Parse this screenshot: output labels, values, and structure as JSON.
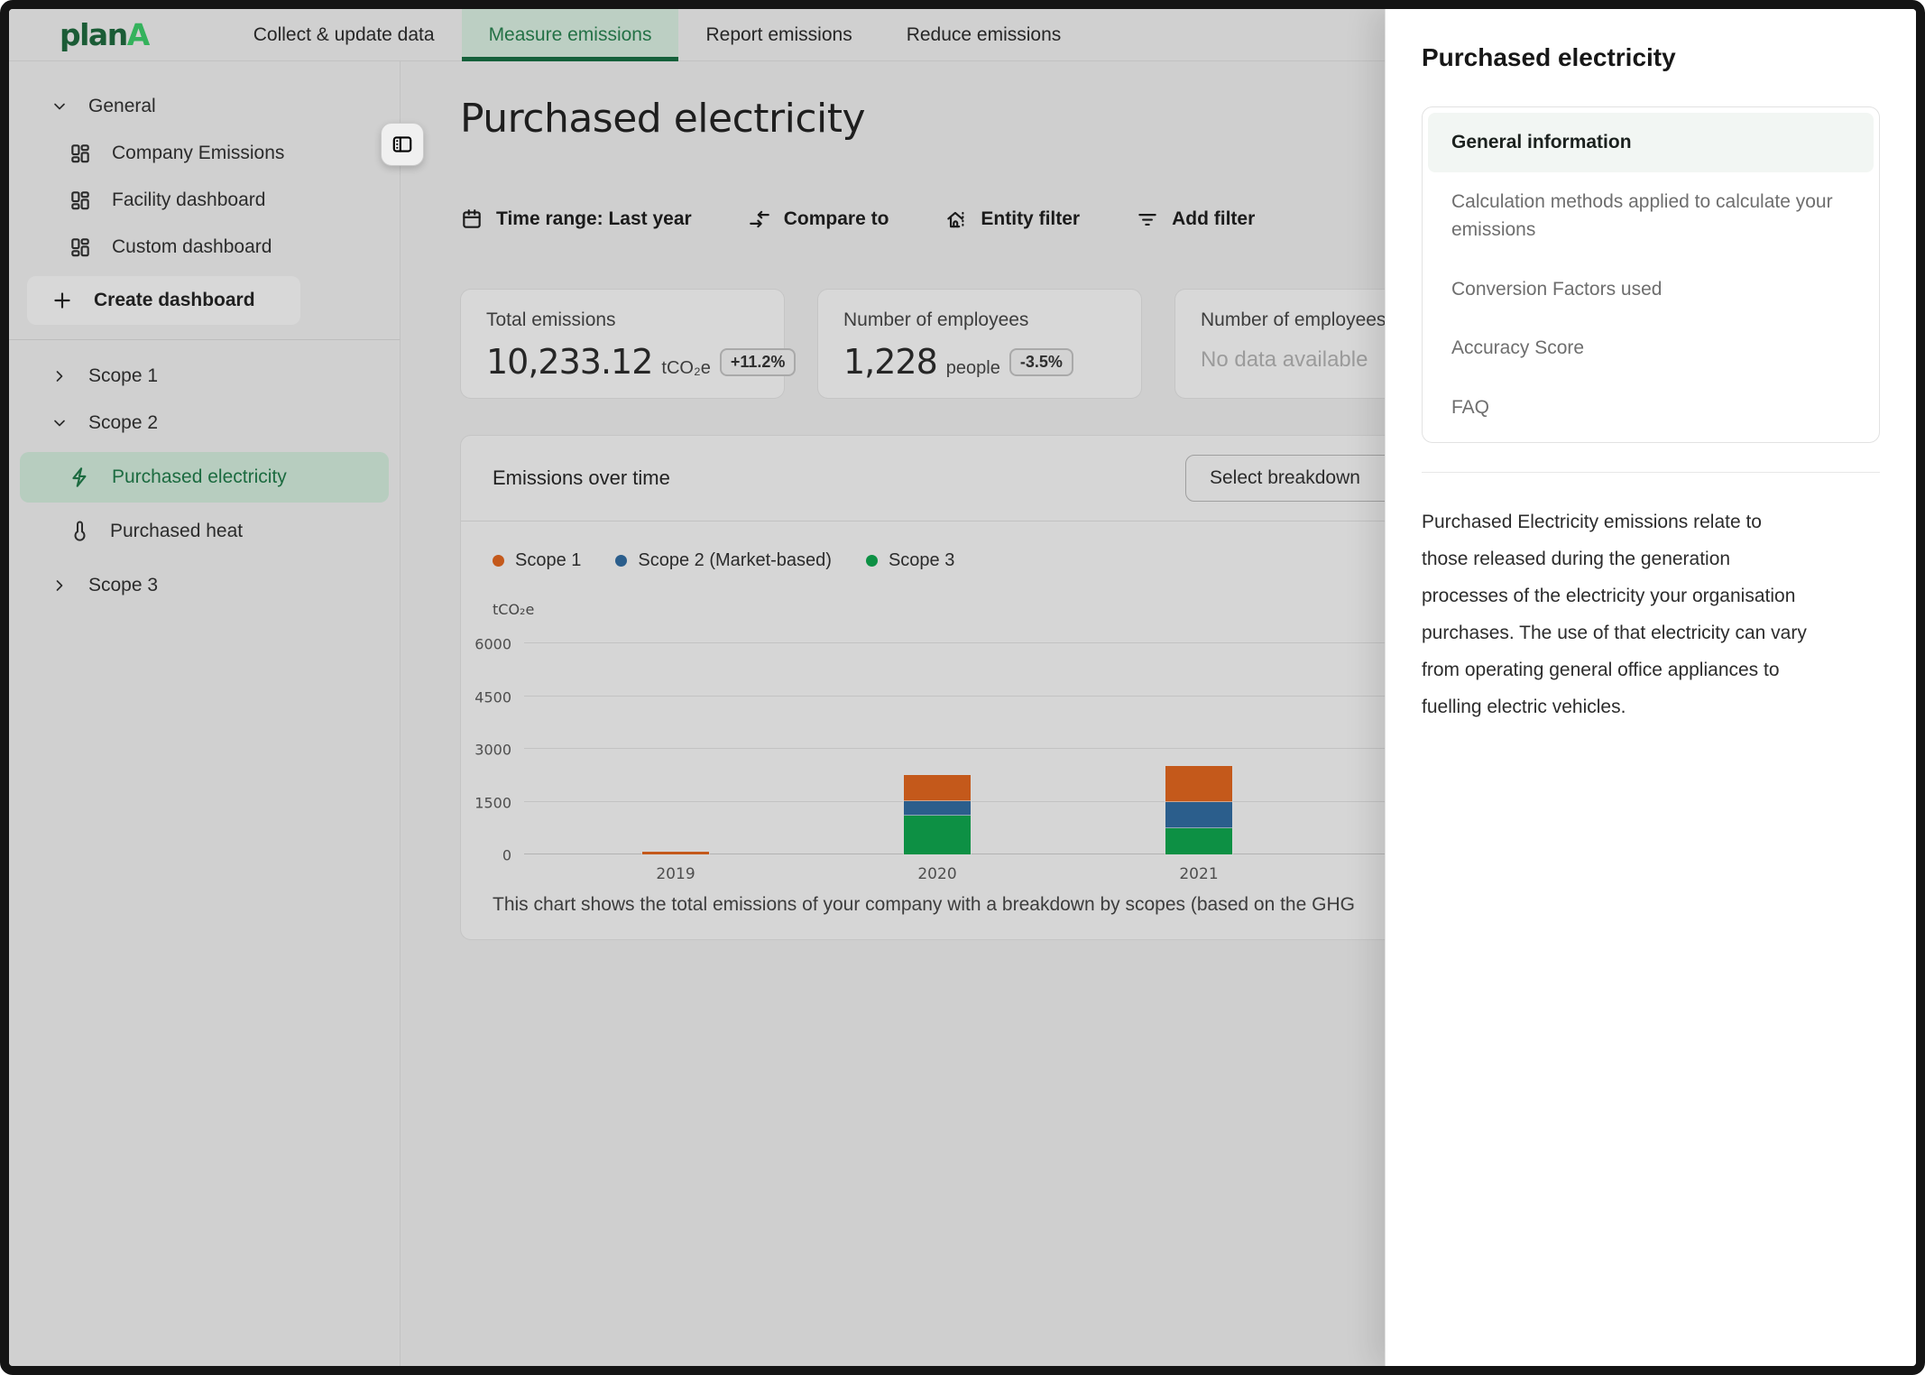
{
  "brand": {
    "plan": "plan",
    "a": "A"
  },
  "nav": {
    "tabs": [
      {
        "label": "Collect & update data",
        "active": false
      },
      {
        "label": "Measure emissions",
        "active": true
      },
      {
        "label": "Report emissions",
        "active": false
      },
      {
        "label": "Reduce emissions",
        "active": false
      }
    ]
  },
  "sidebar": {
    "general": "General",
    "company": "Company Emissions",
    "facility": "Facility dashboard",
    "custom": "Custom dashboard",
    "create": "Create dashboard",
    "scope1": "Scope 1",
    "scope2": "Scope 2",
    "purchased_electricity": "Purchased electricity",
    "purchased_heat": "Purchased heat",
    "scope3": "Scope 3"
  },
  "header": {
    "title": "Purchased electricity"
  },
  "filters": {
    "time_range": "Time range: Last year",
    "compare": "Compare to",
    "entity": "Entity filter",
    "add": "Add filter"
  },
  "stats": [
    {
      "label": "Total emissions",
      "value": "10,233.12",
      "unit": "tCO₂e",
      "badge": "+11.2%"
    },
    {
      "label": "Number of employees",
      "value": "1,228",
      "unit": "people",
      "badge": "-3.5%"
    },
    {
      "label": "Number of employees",
      "empty": "No data available"
    }
  ],
  "chart": {
    "title": "Emissions over time",
    "breakdown": "Select breakdown",
    "caption": "This chart shows the total emissions of your company with a breakdown by scopes (based on the GHG"
  },
  "chart_data": {
    "type": "bar",
    "stacked": true,
    "categories": [
      "2019",
      "2020",
      "2021"
    ],
    "series": [
      {
        "name": "Scope 1",
        "color": "#C4591B",
        "values": [
          80,
          740,
          1030
        ]
      },
      {
        "name": "Scope 2 (Market-based)",
        "color": "#2B5E8C",
        "values": [
          0,
          420,
          740
        ]
      },
      {
        "name": "Scope 3",
        "color": "#0D9044",
        "values": [
          0,
          1100,
          750
        ]
      }
    ],
    "stack_order_bottom_to_top": [
      "Scope 3",
      "Scope 2 (Market-based)",
      "Scope 1"
    ],
    "ylabel": "tCO₂e",
    "yticks": [
      0,
      1500,
      3000,
      4500,
      6000
    ],
    "ylim": [
      0,
      6200
    ],
    "grid": true,
    "legend_position": "top"
  },
  "panel": {
    "title": "Purchased electricity",
    "menu": [
      {
        "label": "General information",
        "active": true
      },
      {
        "label": "Calculation methods applied to calculate your\nemissions",
        "active": false
      },
      {
        "label": "Conversion Factors used",
        "active": false
      },
      {
        "label": "Accuracy Score",
        "active": false
      },
      {
        "label": "FAQ",
        "active": false
      }
    ],
    "body": "Purchased Electricity emissions relate to\nthose released during the generation\nprocesses of the electricity your organisation\npurchases. The use of that electricity can vary\nfrom operating general office appliances to\nfuelling electric vehicles."
  }
}
